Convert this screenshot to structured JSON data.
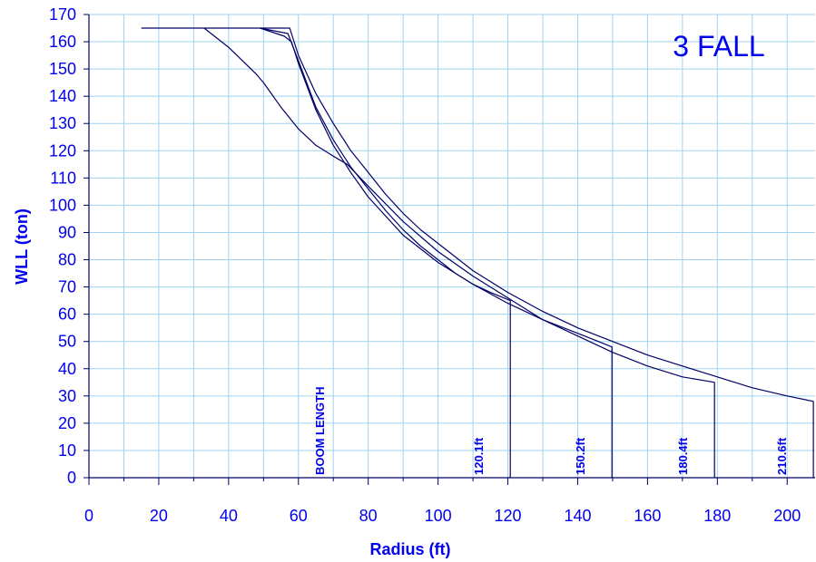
{
  "chart_data": {
    "type": "line",
    "title": "",
    "xlabel": "Radius (ft)",
    "ylabel": "WLL (ton)",
    "xlim": [
      0,
      208
    ],
    "ylim": [
      0,
      170
    ],
    "x_ticks": [
      0,
      20,
      40,
      60,
      80,
      100,
      120,
      140,
      160,
      180,
      200
    ],
    "y_ticks": [
      0,
      10,
      20,
      30,
      40,
      50,
      60,
      70,
      80,
      90,
      100,
      110,
      120,
      130,
      140,
      150,
      160,
      170
    ],
    "grid": true,
    "fall_label": "3 FALL",
    "boom_length_label": "BOOM  LENGTH",
    "series": [
      {
        "label": "120.1ft",
        "x": [
          49,
          57,
          60,
          65,
          70,
          75,
          80,
          85,
          90,
          95,
          100,
          105,
          110,
          115,
          120.7,
          120.7
        ],
        "y": [
          165,
          163,
          153,
          136,
          124,
          114,
          106,
          98,
          91,
          85,
          80,
          75,
          71,
          68,
          65,
          0
        ]
      },
      {
        "label": "150.2ft",
        "x": [
          49,
          56,
          58,
          60,
          65,
          70,
          75,
          80,
          90,
          100,
          110,
          120,
          130,
          140,
          149.8,
          149.8
        ],
        "y": [
          165,
          162,
          160,
          152,
          135,
          122,
          112,
          103,
          89,
          79,
          71,
          64,
          58,
          53,
          48,
          0
        ]
      },
      {
        "label": "180.4ft",
        "x": [
          33,
          40,
          48,
          50,
          55,
          60,
          65,
          70,
          74,
          80,
          90,
          100,
          110,
          120,
          130,
          140,
          150,
          160,
          170,
          179.2,
          179.2
        ],
        "y": [
          165,
          158,
          148,
          145,
          136,
          128,
          122,
          118,
          115,
          107,
          94,
          83,
          74,
          66,
          58,
          52,
          46,
          41,
          37,
          35,
          0
        ]
      },
      {
        "label": "210.6ft",
        "x": [
          15,
          20,
          30,
          40,
          50,
          57.5,
          60,
          65,
          70,
          75,
          80,
          85,
          90,
          95,
          100,
          105,
          110,
          115,
          120,
          130,
          140,
          150,
          160,
          170,
          180,
          190,
          200,
          207.5,
          207.5
        ],
        "y": [
          165,
          165,
          165,
          165,
          165,
          165,
          155,
          141,
          130,
          120,
          112,
          104,
          97,
          91,
          86,
          81,
          76,
          72,
          68,
          61,
          55,
          50,
          45,
          41,
          37,
          33,
          30,
          28,
          0
        ]
      }
    ]
  }
}
